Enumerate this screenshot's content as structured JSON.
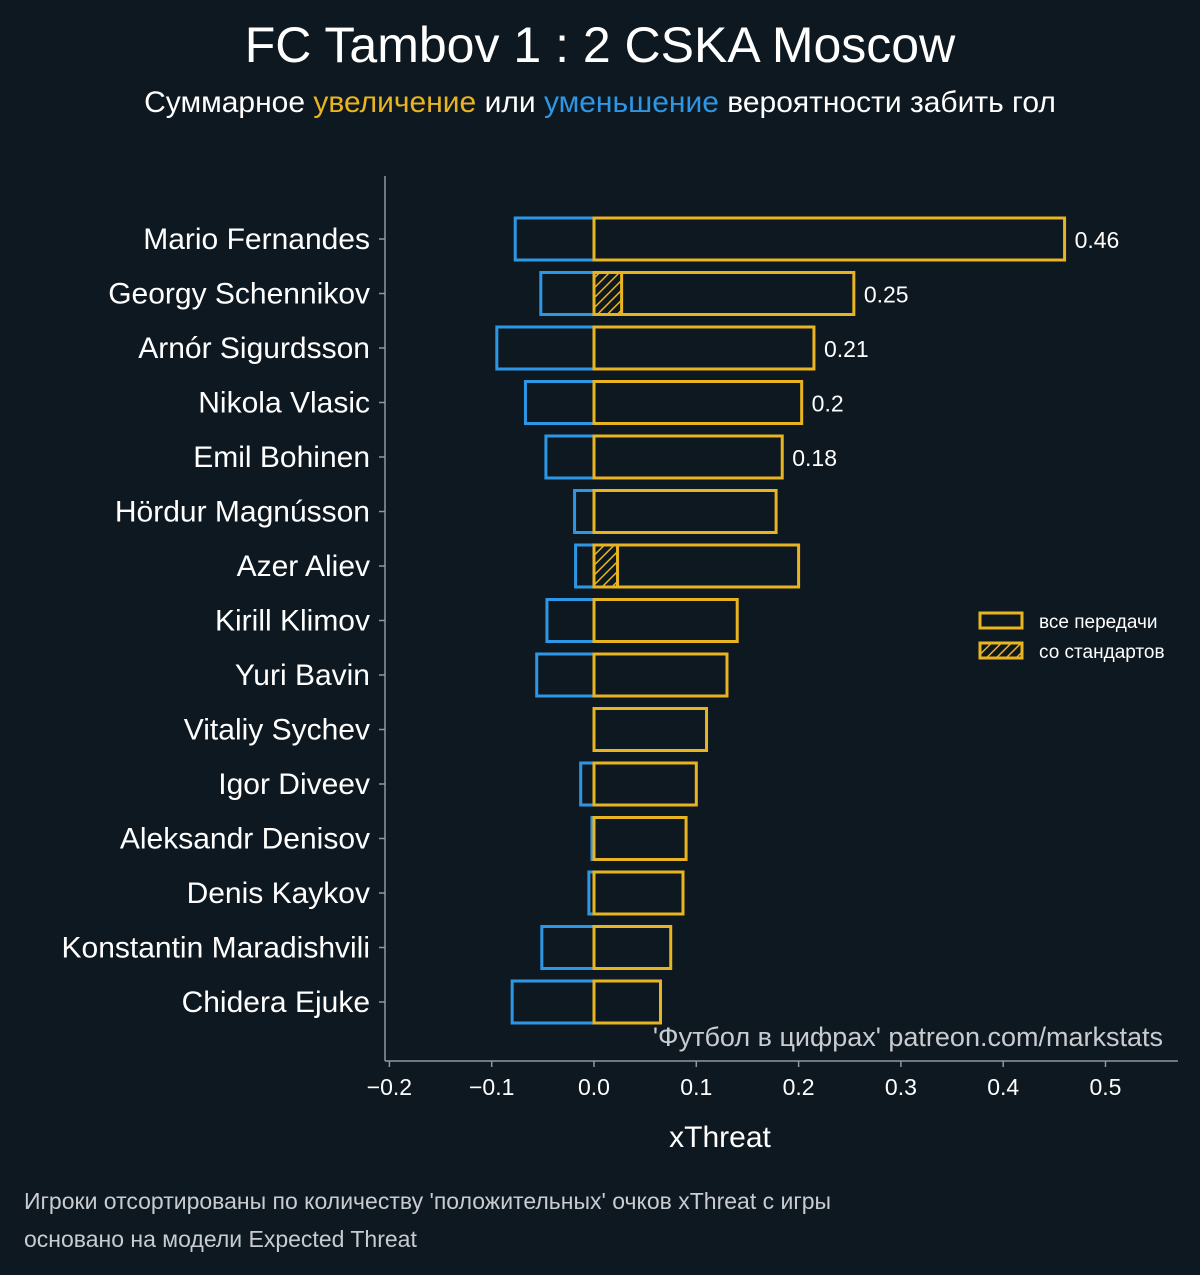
{
  "title": "FC Tambov 1 : 2 CSKA Moscow",
  "subtitle": {
    "part1": "Суммарное ",
    "increase": "увеличение",
    "part2": " или ",
    "decrease": "уменьшение",
    "part3": " вероятности забить гол"
  },
  "colors": {
    "background": "#0e1820",
    "increase": "#e8b422",
    "decrease": "#2d97e6",
    "axis": "#8a9aa3",
    "text": "#ffffff"
  },
  "watermark": "'Футбол в цифрах' patreon.com/markstats",
  "footnotes": [
    "Игроки отсортированы по количеству 'положительных' очков xThreat с игры",
    "основано на модели Expected Threat"
  ],
  "chart_data": {
    "type": "bar",
    "orientation": "horizontal",
    "xlabel": "xThreat",
    "xlim": [
      -0.205,
      0.57
    ],
    "xticks": [
      -0.2,
      -0.1,
      0.0,
      0.1,
      0.2,
      0.3,
      0.4,
      0.5
    ],
    "xtick_labels": [
      "−0.2",
      "−0.1",
      "0.0",
      "0.1",
      "0.2",
      "0.3",
      "0.4",
      "0.5"
    ],
    "legend": {
      "placement": "center-right",
      "entries": [
        {
          "label": "все передачи",
          "style": "outline"
        },
        {
          "label": "со стандартов",
          "style": "hatched"
        }
      ]
    },
    "categories": [
      "Mario Fernandes",
      "Georgy Schennikov",
      "Arnór Sigurdsson",
      "Nikola Vlasic",
      "Emil Bohinen",
      "Hördur Magnússon",
      "Azer Aliev",
      "Kirill Klimov",
      "Yuri Bavin",
      "Vitaliy Sychev",
      "Igor Diveev",
      "Aleksandr Denisov",
      "Denis Kaykov",
      "Konstantin Maradishvili",
      "Chidera Ejuke"
    ],
    "series": [
      {
        "name": "увеличение (все передачи)",
        "values": [
          0.46,
          0.254,
          0.215,
          0.203,
          0.184,
          0.178,
          0.2,
          0.14,
          0.13,
          0.11,
          0.1,
          0.09,
          0.087,
          0.075,
          0.065
        ]
      },
      {
        "name": "уменьшение",
        "values": [
          -0.077,
          -0.052,
          -0.095,
          -0.067,
          -0.047,
          -0.019,
          -0.018,
          -0.046,
          -0.056,
          0.0,
          -0.013,
          -0.002,
          -0.005,
          -0.051,
          -0.08
        ]
      },
      {
        "name": "со стандартов",
        "values": [
          0.0,
          0.027,
          0.0,
          0.0,
          0.0,
          0.0,
          0.023,
          0.0,
          0.0,
          0.0,
          0.0,
          0.0,
          0.0,
          0.0,
          0.0
        ]
      }
    ],
    "value_labels": [
      "0.46",
      "0.25",
      "0.21",
      "0.2",
      "0.18",
      "",
      "",
      "",
      "",
      "",
      "",
      "",
      "",
      "",
      ""
    ]
  }
}
